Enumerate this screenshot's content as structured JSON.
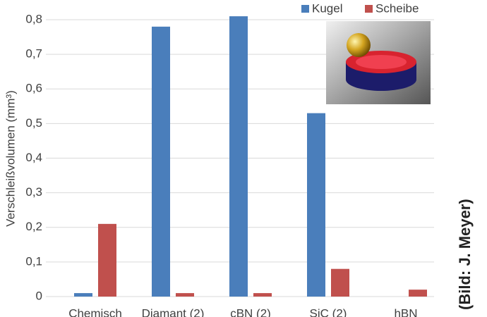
{
  "chart_data": {
    "type": "bar",
    "y_label": "Verschleißvolumen (mm³)",
    "credit": "(Bild: J. Meyer)",
    "categories": [
      "Chemisch",
      "Diamant (2)",
      "cBN (2)",
      "SiC (2)",
      "hBN"
    ],
    "series": [
      {
        "name": "Kugel",
        "color": "#4a7ebb",
        "values": [
          0.01,
          0.78,
          0.81,
          0.53,
          0
        ]
      },
      {
        "name": "Scheibe",
        "color": "#c0504d",
        "values": [
          0.21,
          0.01,
          0.01,
          0.08,
          0.02
        ]
      }
    ],
    "ylim": [
      0,
      0.8
    ],
    "yticks": [
      0,
      {
        "value": 0.1,
        "label": "0,1"
      },
      {
        "value": 0.2,
        "label": "0,2"
      },
      {
        "value": 0.3,
        "label": "0,3"
      },
      {
        "value": 0.4,
        "label": "0,4"
      },
      {
        "value": 0.5,
        "label": "0,5"
      },
      {
        "value": 0.6,
        "label": "0,6"
      },
      {
        "value": 0.7,
        "label": "0,7"
      },
      {
        "value": 0.8,
        "label": "0,8"
      }
    ],
    "grid": true
  }
}
